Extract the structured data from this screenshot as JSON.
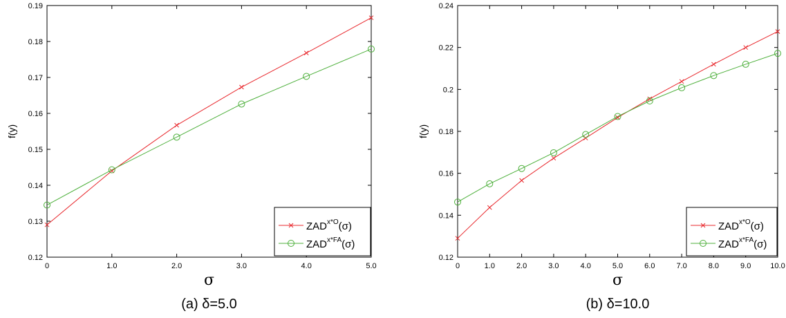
{
  "chart_data": [
    {
      "type": "line",
      "caption": "(a) δ=5.0",
      "xlabel": "σ",
      "ylabel": "f(y)",
      "x": [
        0,
        1,
        2,
        3,
        4,
        5
      ],
      "x_tick_labels": [
        "0",
        "1.0",
        "2.0",
        "3.0",
        "4.0",
        "5.0"
      ],
      "y_tick_labels": [
        "0.12",
        "0.13",
        "0.14",
        "0.15",
        "0.16",
        "0.17",
        "0.18",
        "0.19"
      ],
      "xlim": [
        0,
        5
      ],
      "ylim": [
        0.12,
        0.19
      ],
      "legend_position": "bottom-right",
      "series": [
        {
          "name": "ZAD",
          "name_sup": "x*O",
          "name_suffix": "(σ)",
          "marker": "x",
          "color": "#e8262b",
          "values": [
            0.129,
            0.144,
            0.1567,
            0.1673,
            0.1768,
            0.1866
          ]
        },
        {
          "name": "ZAD",
          "name_sup": "x*FA",
          "name_suffix": "(σ)",
          "marker": "o",
          "color": "#4caf3a",
          "values": [
            0.1345,
            0.1443,
            0.1534,
            0.1626,
            0.1703,
            0.1779
          ]
        }
      ]
    },
    {
      "type": "line",
      "caption": "(b) δ=10.0",
      "xlabel": "σ",
      "ylabel": "f(y)",
      "x": [
        0,
        1,
        2,
        3,
        4,
        5,
        6,
        7,
        8,
        9,
        10
      ],
      "x_tick_labels": [
        "0",
        "1.0",
        "2.0",
        "3.0",
        "4.0",
        "5.0",
        "6.0",
        "7.0",
        "8.0",
        "9.0",
        "10.0"
      ],
      "y_tick_labels": [
        "0.12",
        "0.14",
        "0.16",
        "0.18",
        "0.2",
        "0.22",
        "0.24"
      ],
      "xlim": [
        0,
        10
      ],
      "ylim": [
        0.12,
        0.24
      ],
      "legend_position": "bottom-right",
      "series": [
        {
          "name": "ZAD",
          "name_sup": "x*O",
          "name_suffix": "(σ)",
          "marker": "x",
          "color": "#e8262b",
          "values": [
            0.129,
            0.1437,
            0.1566,
            0.1672,
            0.1768,
            0.1866,
            0.1955,
            0.2038,
            0.212,
            0.22,
            0.2276
          ]
        },
        {
          "name": "ZAD",
          "name_sup": "x*FA",
          "name_suffix": "(σ)",
          "marker": "o",
          "color": "#4caf3a",
          "values": [
            0.1463,
            0.155,
            0.1623,
            0.1698,
            0.1785,
            0.1871,
            0.1945,
            0.2008,
            0.2066,
            0.212,
            0.2172
          ]
        }
      ]
    }
  ]
}
